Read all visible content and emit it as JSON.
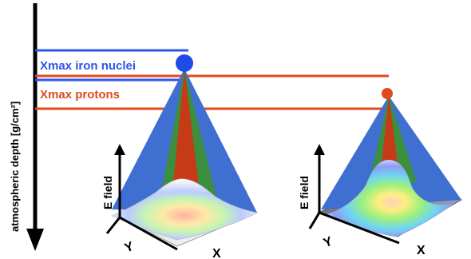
{
  "axis": {
    "label": "atmospheric depth [g/cm²]"
  },
  "bands": {
    "iron": {
      "label": "Xmax iron nuclei",
      "color": "#2f55e6"
    },
    "protons": {
      "label": "Xmax protons",
      "color": "#e04a1e"
    }
  },
  "showers": [
    {
      "name": "iron",
      "dot_color": "#1f4be8",
      "ylabel": "E field",
      "xaxis": "X",
      "yaxis": "Y"
    },
    {
      "name": "proton",
      "dot_color": "#e04a1e",
      "ylabel": "E field",
      "xaxis": "X",
      "yaxis": "Y"
    }
  ],
  "cone_colors": {
    "outer": "#3f6fd1",
    "middle": "#3c8f3c",
    "inner": "#c63a18"
  }
}
